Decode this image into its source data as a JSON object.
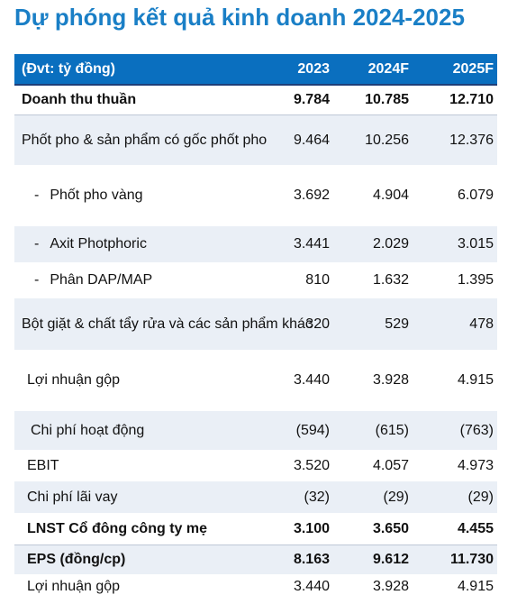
{
  "title": "Dự phóng kết quả kinh doanh 2024-2025",
  "header": {
    "unit": "(Đvt: tỷ đồng)",
    "cols": [
      "2023",
      "2024F",
      "2025F"
    ]
  },
  "rows": [
    {
      "label": "Doanh thu thuần",
      "v": [
        "9.784",
        "10.785",
        "12.710"
      ]
    },
    {
      "label": "Phốt pho & sản phẩm có gốc phốt pho",
      "v": [
        "9.464",
        "10.256",
        "12.376"
      ]
    },
    {
      "dash": "-",
      "label": "Phốt pho vàng",
      "v": [
        "3.692",
        "4.904",
        "6.079"
      ]
    },
    {
      "dash": "-",
      "label": "Axit Photphoric",
      "v": [
        "3.441",
        "2.029",
        "3.015"
      ]
    },
    {
      "dash": "-",
      "label": "Phân DAP/MAP",
      "v": [
        "810",
        "1.632",
        "1.395"
      ]
    },
    {
      "label": "Bột giặt & chất tẩy rửa và các sản phẩm khác",
      "v": [
        "320",
        "529",
        "478"
      ]
    },
    {
      "label": "Lợi nhuận gộp",
      "v": [
        "3.440",
        "3.928",
        "4.915"
      ]
    },
    {
      "label": "Chi phí hoạt động",
      "v": [
        "(594)",
        "(615)",
        "(763)"
      ]
    },
    {
      "label": "EBIT",
      "v": [
        "3.520",
        "4.057",
        "4.973"
      ]
    },
    {
      "label": "Chi phí lãi vay",
      "v": [
        "(32)",
        "(29)",
        "(29)"
      ]
    },
    {
      "label": "LNST Cổ đông công ty mẹ",
      "v": [
        "3.100",
        "3.650",
        "4.455"
      ]
    },
    {
      "label": "EPS (đồng/cp)",
      "v": [
        "8.163",
        "9.612",
        "11.730"
      ]
    },
    {
      "label": "Lợi nhuận gộp",
      "v": [
        "3.440",
        "3.928",
        "4.915"
      ]
    }
  ]
}
